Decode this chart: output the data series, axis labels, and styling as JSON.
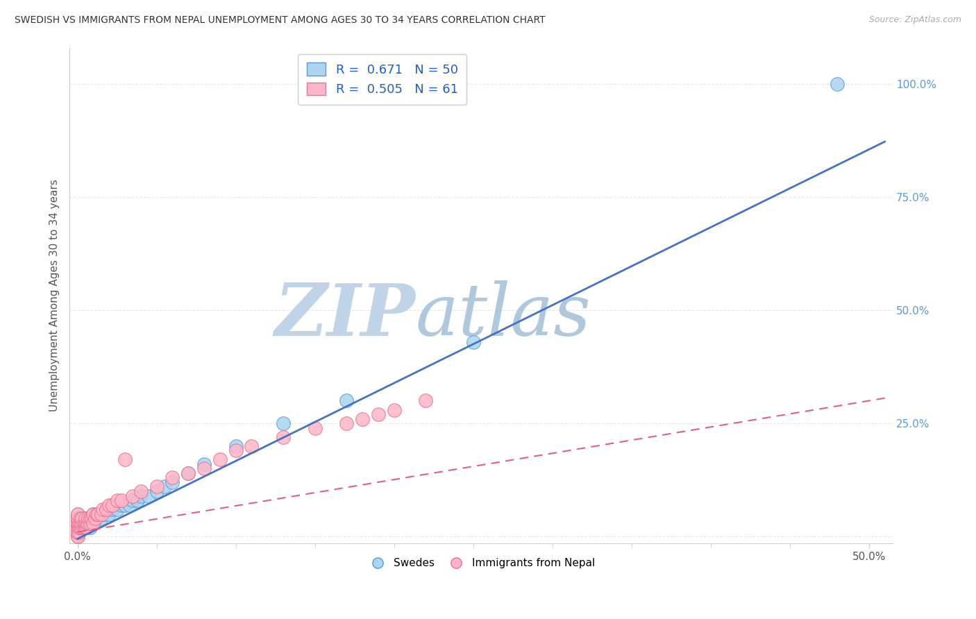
{
  "title": "SWEDISH VS IMMIGRANTS FROM NEPAL UNEMPLOYMENT AMONG AGES 30 TO 34 YEARS CORRELATION CHART",
  "source": "Source: ZipAtlas.com",
  "xlim": [
    -0.005,
    0.515
  ],
  "ylim": [
    -0.015,
    1.08
  ],
  "ylabel": "Unemployment Among Ages 30 to 34 years",
  "swede_color": "#aad4f0",
  "swede_edge_color": "#5b9bd5",
  "nepal_color": "#ffb6c8",
  "nepal_edge_color": "#e87090",
  "swede_line_color": "#4472c4",
  "nepal_line_color": "#e06080",
  "legend1_R": "0.671",
  "legend1_N": "50",
  "legend2_R": "0.505",
  "legend2_N": "61",
  "watermark_zip_color": "#c5d8e8",
  "watermark_atlas_color": "#b8cfe0",
  "swedes_label": "Swedes",
  "nepal_label": "Immigrants from Nepal",
  "background_color": "#ffffff",
  "grid_color": "#e0e8f0",
  "ytick_color": "#5b9bd5",
  "xtick_color": "#555555",
  "ylabel_color": "#555555",
  "swede_line_slope": 1.72,
  "swede_line_intercept": -0.005,
  "nepal_line_slope": 0.58,
  "nepal_line_intercept": 0.01,
  "swedes_x": [
    0.0,
    0.0,
    0.0,
    0.0,
    0.001,
    0.001,
    0.002,
    0.002,
    0.003,
    0.003,
    0.004,
    0.004,
    0.004,
    0.005,
    0.005,
    0.005,
    0.006,
    0.006,
    0.007,
    0.007,
    0.008,
    0.008,
    0.009,
    0.009,
    0.01,
    0.01,
    0.012,
    0.013,
    0.015,
    0.017,
    0.02,
    0.022,
    0.025,
    0.028,
    0.03,
    0.033,
    0.035,
    0.038,
    0.04,
    0.045,
    0.05,
    0.055,
    0.06,
    0.07,
    0.08,
    0.1,
    0.13,
    0.17,
    0.25,
    0.48
  ],
  "swedes_y": [
    0.02,
    0.03,
    0.04,
    0.05,
    0.02,
    0.03,
    0.03,
    0.04,
    0.02,
    0.03,
    0.02,
    0.03,
    0.04,
    0.02,
    0.03,
    0.04,
    0.03,
    0.04,
    0.03,
    0.04,
    0.02,
    0.04,
    0.03,
    0.04,
    0.03,
    0.05,
    0.04,
    0.05,
    0.04,
    0.05,
    0.05,
    0.06,
    0.06,
    0.07,
    0.07,
    0.07,
    0.08,
    0.08,
    0.09,
    0.09,
    0.1,
    0.11,
    0.12,
    0.14,
    0.16,
    0.2,
    0.25,
    0.3,
    0.43,
    1.0
  ],
  "nepal_x": [
    0.0,
    0.0,
    0.0,
    0.0,
    0.0,
    0.0,
    0.0,
    0.0,
    0.0,
    0.0,
    0.0,
    0.001,
    0.001,
    0.001,
    0.002,
    0.002,
    0.002,
    0.003,
    0.003,
    0.003,
    0.004,
    0.004,
    0.005,
    0.005,
    0.005,
    0.006,
    0.006,
    0.007,
    0.007,
    0.008,
    0.008,
    0.009,
    0.01,
    0.01,
    0.011,
    0.012,
    0.013,
    0.015,
    0.016,
    0.018,
    0.02,
    0.022,
    0.025,
    0.028,
    0.03,
    0.035,
    0.04,
    0.05,
    0.06,
    0.07,
    0.08,
    0.09,
    0.1,
    0.11,
    0.13,
    0.15,
    0.17,
    0.18,
    0.19,
    0.2,
    0.22
  ],
  "nepal_y": [
    0.0,
    0.0,
    0.01,
    0.01,
    0.02,
    0.02,
    0.03,
    0.03,
    0.04,
    0.04,
    0.05,
    0.01,
    0.02,
    0.03,
    0.02,
    0.03,
    0.04,
    0.02,
    0.03,
    0.04,
    0.02,
    0.03,
    0.02,
    0.03,
    0.04,
    0.02,
    0.03,
    0.03,
    0.04,
    0.03,
    0.04,
    0.04,
    0.03,
    0.05,
    0.04,
    0.05,
    0.05,
    0.05,
    0.06,
    0.06,
    0.07,
    0.07,
    0.08,
    0.08,
    0.17,
    0.09,
    0.1,
    0.11,
    0.13,
    0.14,
    0.15,
    0.17,
    0.19,
    0.2,
    0.22,
    0.24,
    0.25,
    0.26,
    0.27,
    0.28,
    0.3
  ]
}
